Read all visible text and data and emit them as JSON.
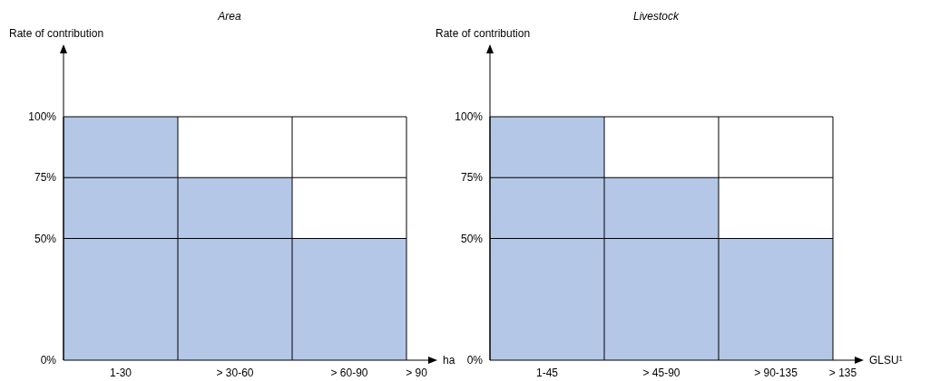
{
  "chart_data": [
    {
      "type": "bar",
      "title": "Area",
      "ylabel": "Rate of contribution",
      "xlabel": "ha",
      "categories": [
        "1-30",
        "> 30-60",
        "> 60-90",
        "> 90"
      ],
      "values": [
        100,
        75,
        50,
        null
      ],
      "color": "#b4c7e7",
      "ylim": [
        0,
        126
      ],
      "yticks": [
        {
          "value": 0,
          "label": "0%"
        },
        {
          "value": 50,
          "label": "50%"
        },
        {
          "value": 75,
          "label": "75%"
        },
        {
          "value": 100,
          "label": "100%"
        }
      ],
      "grid": true
    },
    {
      "type": "bar",
      "title": "Livestock",
      "ylabel": "Rate of contribution",
      "xlabel": "GLSU¹",
      "categories": [
        "1-45",
        "> 45-90",
        "> 90-135",
        "> 135"
      ],
      "values": [
        100,
        75,
        50,
        null
      ],
      "color": "#b4c7e7",
      "ylim": [
        0,
        126
      ],
      "yticks": [
        {
          "value": 0,
          "label": "0%"
        },
        {
          "value": 50,
          "label": "50%"
        },
        {
          "value": 75,
          "label": "75%"
        },
        {
          "value": 100,
          "label": "100%"
        }
      ],
      "grid": true
    }
  ]
}
